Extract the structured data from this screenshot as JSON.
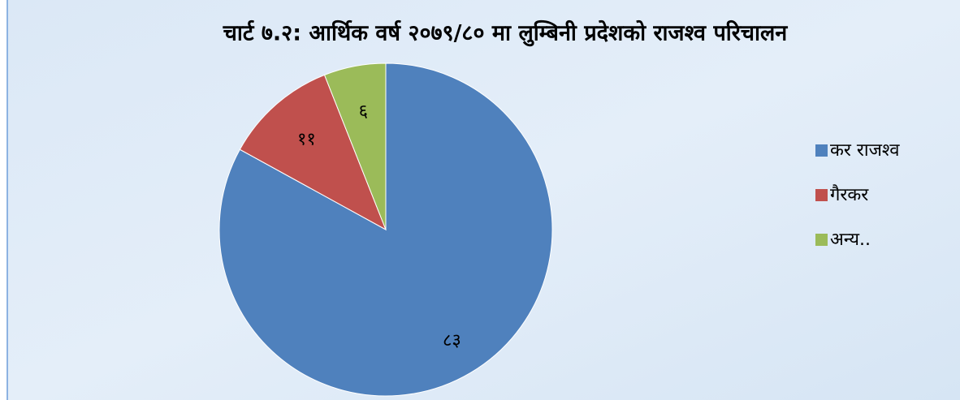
{
  "chart_data": {
    "type": "pie",
    "title": "चार्ट ७.२: आर्थिक वर्ष २०७९/८० मा लुम्बिनी प्रदेशको  राजश्व परिचालन",
    "categories": [
      "कर राजश्व",
      "गैरकर",
      "अन्य.."
    ],
    "values": [
      83,
      11,
      6
    ],
    "value_labels": [
      "८३",
      "११",
      "६"
    ],
    "colors": [
      "#4f81bd",
      "#c0504d",
      "#9bbb59"
    ],
    "legend": "right"
  }
}
